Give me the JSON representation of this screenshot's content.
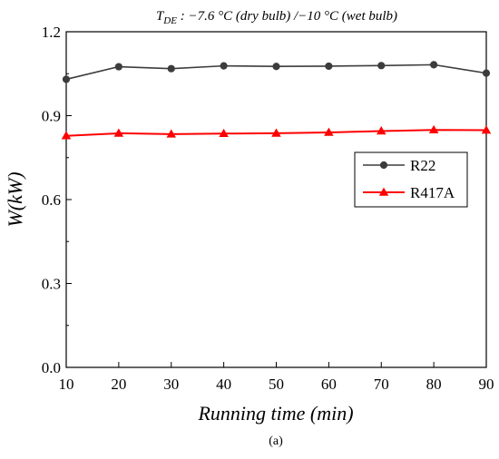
{
  "chart_data": {
    "type": "line",
    "title": {
      "symbol": "T",
      "subscript": "DE",
      "rest": " : −7.6 °C (dry bulb) /−10 °C (wet bulb)"
    },
    "xlabel": "Running time (min)",
    "ylabel": "W(kW)",
    "caption": "(a)",
    "x": [
      10,
      20,
      30,
      40,
      50,
      60,
      70,
      80,
      90
    ],
    "xlim": [
      10,
      90
    ],
    "ylim": [
      0.0,
      1.2
    ],
    "x_ticks": [
      "10",
      "20",
      "30",
      "40",
      "50",
      "60",
      "70",
      "80",
      "90"
    ],
    "y_ticks": [
      "0.0",
      "0.3",
      "0.6",
      "0.9",
      "1.2"
    ],
    "grid": false,
    "legend_position": "right-middle",
    "series": [
      {
        "name": "R22",
        "color": "#3c3c3c",
        "marker": "circle",
        "values": [
          1.03,
          1.075,
          1.068,
          1.078,
          1.076,
          1.077,
          1.079,
          1.082,
          1.052
        ]
      },
      {
        "name": "R417A",
        "color": "#ff0000",
        "marker": "triangle",
        "values": [
          0.828,
          0.837,
          0.834,
          0.836,
          0.837,
          0.84,
          0.845,
          0.849,
          0.848
        ]
      }
    ]
  }
}
